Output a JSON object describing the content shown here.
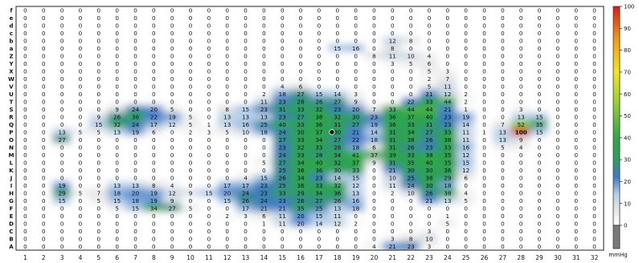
{
  "chart_data": {
    "type": "heatmap",
    "title": "",
    "xlabel": "",
    "ylabel": "",
    "columns": [
      "1",
      "2",
      "3",
      "4",
      "5",
      "6",
      "7",
      "8",
      "9",
      "10",
      "11",
      "12",
      "13",
      "14",
      "15",
      "16",
      "17",
      "18",
      "19",
      "20",
      "21",
      "22",
      "23",
      "24",
      "25",
      "26",
      "27",
      "28",
      "29",
      "30",
      "31",
      "32"
    ],
    "rows": [
      "f",
      "e",
      "d",
      "c",
      "b",
      "a",
      "Z",
      "Y",
      "X",
      "W",
      "V",
      "U",
      "T",
      "S",
      "R",
      "Q",
      "P",
      "O",
      "N",
      "M",
      "L",
      "K",
      "J",
      "I",
      "H",
      "G",
      "F",
      "E",
      "D",
      "C",
      "B",
      "A"
    ],
    "values": [
      [
        0,
        0,
        0,
        0,
        0,
        0,
        0,
        0,
        0,
        0,
        0,
        0,
        0,
        0,
        0,
        0,
        0,
        0,
        0,
        0,
        0,
        0,
        0,
        0,
        0,
        0,
        0,
        0,
        0,
        0,
        0,
        0
      ],
      [
        0,
        0,
        0,
        0,
        0,
        0,
        0,
        0,
        0,
        0,
        0,
        0,
        0,
        0,
        0,
        0,
        0,
        0,
        0,
        0,
        0,
        0,
        0,
        0,
        0,
        0,
        0,
        0,
        0,
        0,
        0,
        0
      ],
      [
        0,
        0,
        0,
        0,
        0,
        0,
        0,
        0,
        0,
        0,
        0,
        0,
        0,
        0,
        0,
        0,
        0,
        0,
        0,
        0,
        0,
        0,
        0,
        0,
        0,
        0,
        0,
        0,
        0,
        0,
        0,
        0
      ],
      [
        0,
        0,
        0,
        0,
        0,
        0,
        0,
        0,
        0,
        0,
        0,
        0,
        0,
        0,
        0,
        0,
        0,
        0,
        0,
        0,
        0,
        0,
        0,
        0,
        0,
        0,
        0,
        0,
        0,
        0,
        0,
        0
      ],
      [
        0,
        0,
        0,
        0,
        0,
        0,
        0,
        0,
        0,
        0,
        0,
        0,
        0,
        0,
        0,
        0,
        0,
        0,
        0,
        0,
        12,
        8,
        0,
        0,
        0,
        0,
        0,
        0,
        0,
        0,
        0,
        0
      ],
      [
        0,
        0,
        0,
        0,
        0,
        0,
        0,
        0,
        0,
        0,
        0,
        0,
        0,
        0,
        0,
        0,
        0,
        15,
        16,
        0,
        8,
        0,
        0,
        0,
        0,
        0,
        0,
        0,
        0,
        0,
        0,
        0
      ],
      [
        0,
        0,
        0,
        0,
        0,
        0,
        0,
        0,
        0,
        0,
        0,
        0,
        0,
        0,
        0,
        0,
        0,
        0,
        0,
        8,
        11,
        10,
        4,
        0,
        0,
        0,
        0,
        0,
        0,
        0,
        0,
        0
      ],
      [
        0,
        0,
        0,
        0,
        0,
        0,
        0,
        0,
        0,
        0,
        0,
        0,
        0,
        0,
        0,
        0,
        0,
        0,
        0,
        0,
        3,
        5,
        6,
        0,
        0,
        0,
        0,
        0,
        0,
        0,
        0,
        0
      ],
      [
        0,
        0,
        0,
        0,
        0,
        0,
        0,
        0,
        0,
        0,
        0,
        0,
        0,
        0,
        0,
        0,
        0,
        0,
        0,
        0,
        0,
        0,
        5,
        3,
        0,
        0,
        0,
        0,
        0,
        0,
        0,
        0
      ],
      [
        0,
        0,
        0,
        0,
        0,
        0,
        0,
        0,
        0,
        0,
        0,
        0,
        0,
        0,
        0,
        0,
        0,
        0,
        0,
        0,
        0,
        0,
        2,
        7,
        0,
        0,
        0,
        0,
        0,
        0,
        0,
        0
      ],
      [
        0,
        0,
        0,
        0,
        0,
        0,
        0,
        0,
        0,
        0,
        0,
        0,
        0,
        0,
        4,
        6,
        0,
        0,
        0,
        0,
        0,
        0,
        5,
        11,
        0,
        0,
        0,
        0,
        0,
        0,
        0,
        0
      ],
      [
        0,
        0,
        0,
        0,
        0,
        0,
        0,
        0,
        0,
        0,
        0,
        0,
        0,
        2,
        18,
        27,
        15,
        14,
        3,
        0,
        0,
        0,
        21,
        12,
        2,
        0,
        0,
        0,
        0,
        0,
        0,
        0
      ],
      [
        0,
        0,
        0,
        0,
        0,
        0,
        0,
        0,
        0,
        0,
        0,
        0,
        0,
        11,
        23,
        28,
        26,
        27,
        9,
        0,
        0,
        22,
        33,
        44,
        2,
        0,
        0,
        0,
        0,
        0,
        0,
        0
      ],
      [
        0,
        0,
        0,
        0,
        0,
        9,
        24,
        20,
        5,
        0,
        0,
        8,
        15,
        23,
        31,
        33,
        32,
        23,
        20,
        7,
        33,
        44,
        44,
        21,
        1,
        0,
        0,
        3,
        0,
        0,
        0,
        0
      ],
      [
        0,
        0,
        0,
        0,
        9,
        26,
        38,
        22,
        19,
        5,
        0,
        13,
        13,
        13,
        23,
        27,
        38,
        32,
        30,
        23,
        36,
        37,
        40,
        23,
        19,
        0,
        0,
        13,
        15,
        0,
        0,
        0
      ],
      [
        0,
        0,
        0,
        0,
        15,
        32,
        24,
        17,
        12,
        5,
        1,
        13,
        16,
        25,
        40,
        33,
        36,
        31,
        27,
        19,
        36,
        33,
        31,
        23,
        14,
        0,
        7,
        52,
        35,
        0,
        0,
        0
      ],
      [
        0,
        0,
        13,
        5,
        5,
        13,
        19,
        6,
        0,
        2,
        3,
        5,
        10,
        18,
        24,
        30,
        37,
        30,
        21,
        14,
        31,
        34,
        27,
        33,
        11,
        1,
        13,
        100,
        15,
        0,
        0,
        0
      ],
      [
        0,
        0,
        27,
        0,
        0,
        0,
        0,
        0,
        0,
        0,
        0,
        0,
        0,
        0,
        27,
        33,
        34,
        27,
        22,
        18,
        31,
        38,
        26,
        38,
        11,
        0,
        13,
        9,
        0,
        0,
        0,
        0
      ],
      [
        0,
        0,
        0,
        0,
        0,
        0,
        0,
        0,
        0,
        0,
        0,
        0,
        0,
        0,
        23,
        32,
        33,
        28,
        18,
        6,
        31,
        26,
        23,
        33,
        16,
        0,
        5,
        4,
        0,
        0,
        0,
        0
      ],
      [
        0,
        0,
        0,
        0,
        0,
        0,
        0,
        0,
        0,
        0,
        0,
        0,
        0,
        0,
        24,
        33,
        28,
        34,
        41,
        37,
        39,
        33,
        38,
        35,
        12,
        0,
        0,
        0,
        0,
        0,
        0,
        0
      ],
      [
        0,
        0,
        0,
        0,
        0,
        0,
        0,
        0,
        0,
        0,
        0,
        0,
        0,
        5,
        27,
        34,
        40,
        32,
        37,
        9,
        31,
        35,
        40,
        35,
        15,
        0,
        0,
        0,
        0,
        0,
        0,
        0
      ],
      [
        0,
        0,
        0,
        0,
        0,
        0,
        0,
        0,
        0,
        0,
        0,
        0,
        0,
        0,
        25,
        36,
        36,
        30,
        33,
        0,
        21,
        30,
        30,
        36,
        12,
        0,
        0,
        0,
        0,
        0,
        0,
        0
      ],
      [
        0,
        0,
        0,
        0,
        0,
        0,
        0,
        0,
        0,
        0,
        0,
        0,
        4,
        15,
        26,
        34,
        23,
        14,
        15,
        0,
        10,
        25,
        38,
        29,
        6,
        0,
        0,
        0,
        0,
        0,
        0,
        0
      ],
      [
        0,
        0,
        19,
        0,
        0,
        13,
        13,
        8,
        4,
        0,
        0,
        17,
        17,
        23,
        25,
        36,
        33,
        32,
        12,
        0,
        11,
        24,
        30,
        18,
        0,
        0,
        0,
        0,
        0,
        0,
        0,
        0
      ],
      [
        0,
        0,
        29,
        5,
        7,
        18,
        20,
        19,
        12,
        9,
        15,
        20,
        24,
        23,
        33,
        29,
        34,
        36,
        13,
        0,
        2,
        10,
        26,
        38,
        4,
        0,
        0,
        0,
        0,
        0,
        0,
        0
      ],
      [
        0,
        0,
        15,
        0,
        5,
        15,
        18,
        19,
        9,
        0,
        0,
        15,
        26,
        24,
        23,
        26,
        27,
        26,
        16,
        0,
        0,
        0,
        21,
        13,
        5,
        0,
        0,
        0,
        0,
        0,
        0,
        0
      ],
      [
        0,
        0,
        0,
        0,
        0,
        5,
        15,
        34,
        27,
        5,
        0,
        0,
        17,
        21,
        21,
        35,
        25,
        13,
        18,
        0,
        0,
        0,
        0,
        0,
        0,
        0,
        0,
        0,
        0,
        0,
        0,
        0
      ],
      [
        0,
        0,
        0,
        0,
        0,
        0,
        0,
        0,
        0,
        0,
        0,
        2,
        3,
        6,
        11,
        20,
        15,
        11,
        0,
        0,
        0,
        0,
        0,
        1,
        0,
        0,
        0,
        0,
        0,
        0,
        0,
        0
      ],
      [
        0,
        0,
        0,
        0,
        0,
        0,
        0,
        0,
        0,
        0,
        0,
        0,
        0,
        1,
        11,
        20,
        14,
        12,
        2,
        0,
        0,
        0,
        0,
        5,
        0,
        0,
        0,
        0,
        0,
        0,
        0,
        0
      ],
      [
        0,
        0,
        0,
        0,
        0,
        0,
        0,
        0,
        0,
        0,
        0,
        0,
        0,
        0,
        0,
        0,
        0,
        0,
        0,
        0,
        0,
        0,
        3,
        0,
        0,
        0,
        0,
        0,
        0,
        0,
        0,
        0
      ],
      [
        0,
        0,
        0,
        0,
        0,
        0,
        0,
        0,
        0,
        0,
        0,
        0,
        0,
        0,
        0,
        0,
        0,
        0,
        0,
        0,
        3,
        8,
        10,
        0,
        0,
        0,
        0,
        0,
        0,
        0,
        0,
        0
      ],
      [
        0,
        0,
        0,
        0,
        0,
        0,
        0,
        0,
        0,
        0,
        0,
        0,
        0,
        0,
        0,
        0,
        0,
        0,
        0,
        4,
        21,
        23,
        3,
        0,
        0,
        0,
        0,
        0,
        0,
        0,
        0,
        0
      ]
    ],
    "color_scale": {
      "min": 0,
      "max": 100,
      "ticks": [
        "100",
        "90",
        "80",
        "70",
        "60",
        "50",
        "40",
        "30",
        "20",
        "10",
        "0"
      ],
      "unit": "mmHg",
      "stops": [
        {
          "v": 0,
          "c": "#ffffff"
        },
        {
          "v": 8,
          "c": "#e2e2e2"
        },
        {
          "v": 14,
          "c": "#b6d0ea"
        },
        {
          "v": 22,
          "c": "#3f79c7"
        },
        {
          "v": 30,
          "c": "#2f9e5f"
        },
        {
          "v": 40,
          "c": "#2fa845"
        },
        {
          "v": 55,
          "c": "#8fcf2e"
        },
        {
          "v": 70,
          "c": "#f3e51d"
        },
        {
          "v": 85,
          "c": "#f59a14"
        },
        {
          "v": 100,
          "c": "#d91b1b"
        }
      ]
    },
    "marker": {
      "row": "P",
      "column": "18",
      "icon": "center-of-pressure-marker-icon"
    }
  }
}
